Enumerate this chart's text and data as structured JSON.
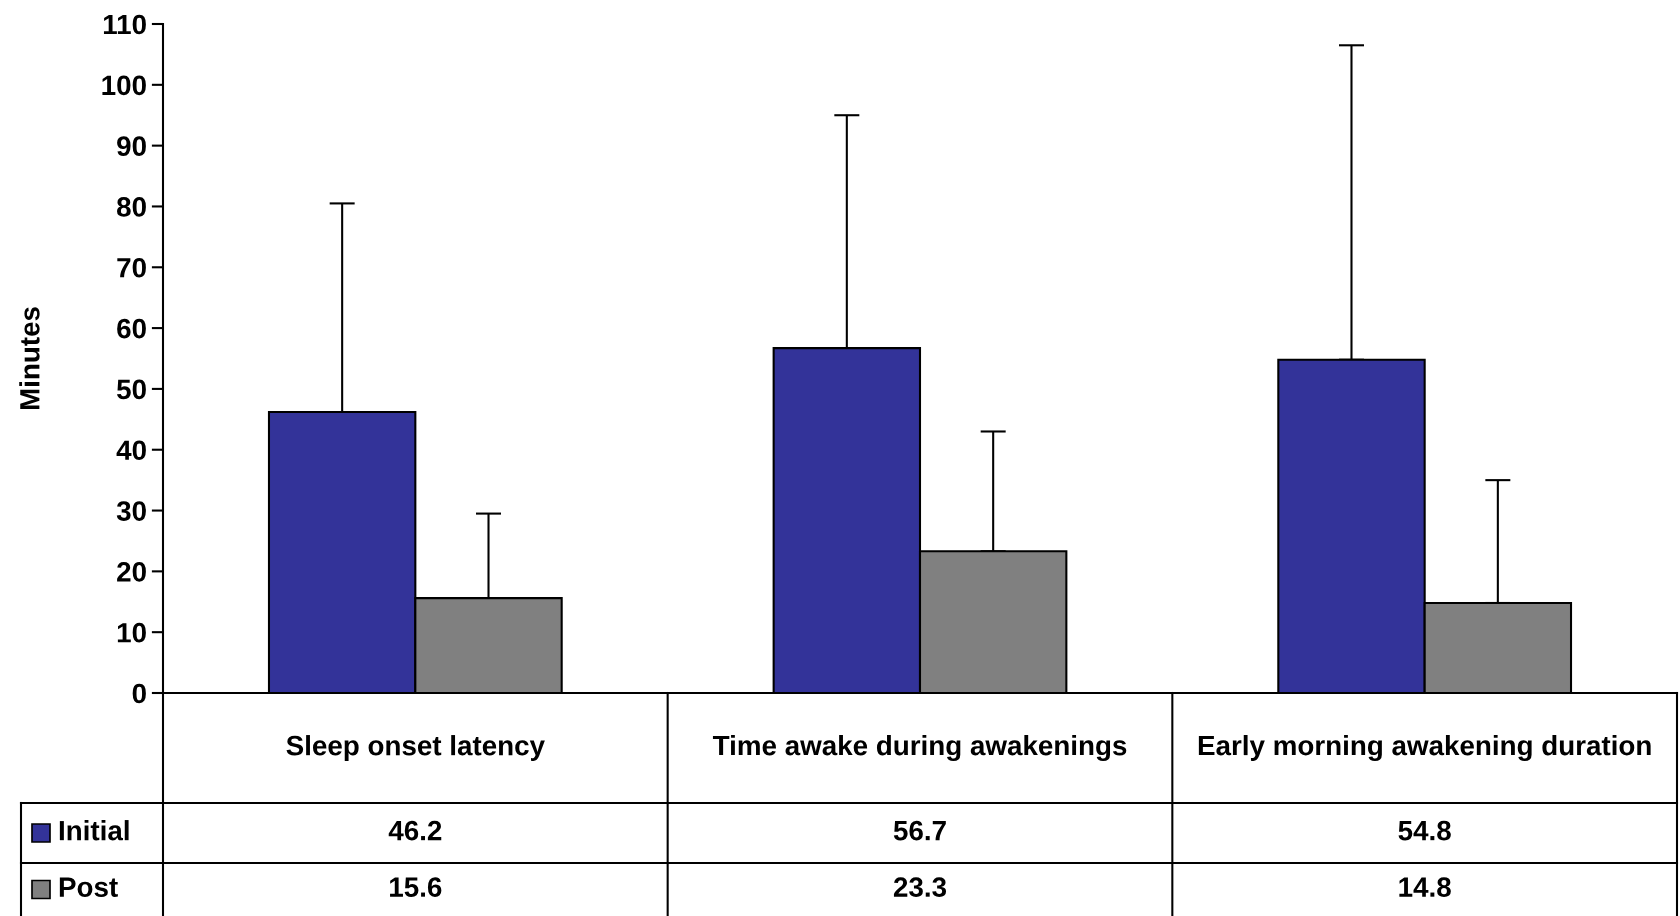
{
  "chart_data": {
    "type": "bar",
    "ylabel": "Minutes",
    "categories": [
      "Sleep onset latency",
      "Time awake during awakenings",
      "Early morning awakening duration"
    ],
    "series": [
      {
        "name": "Initial",
        "color": "#333399",
        "values": [
          46.2,
          56.7,
          54.8
        ],
        "errors": [
          [
            46.2,
            80.5
          ],
          [
            56.7,
            95
          ],
          [
            54.8,
            106.5
          ]
        ]
      },
      {
        "name": "Post",
        "color": "#808080",
        "values": [
          15.6,
          23.3,
          14.8
        ],
        "errors": [
          [
            15.6,
            29.5
          ],
          [
            23.3,
            43
          ],
          [
            14.8,
            35
          ]
        ]
      }
    ],
    "ylim": [
      0,
      110
    ],
    "yticks": [
      0,
      10,
      20,
      30,
      40,
      50,
      60,
      70,
      80,
      90,
      100,
      110
    ],
    "grid": false,
    "legend": "bottom",
    "data_labels": true
  }
}
